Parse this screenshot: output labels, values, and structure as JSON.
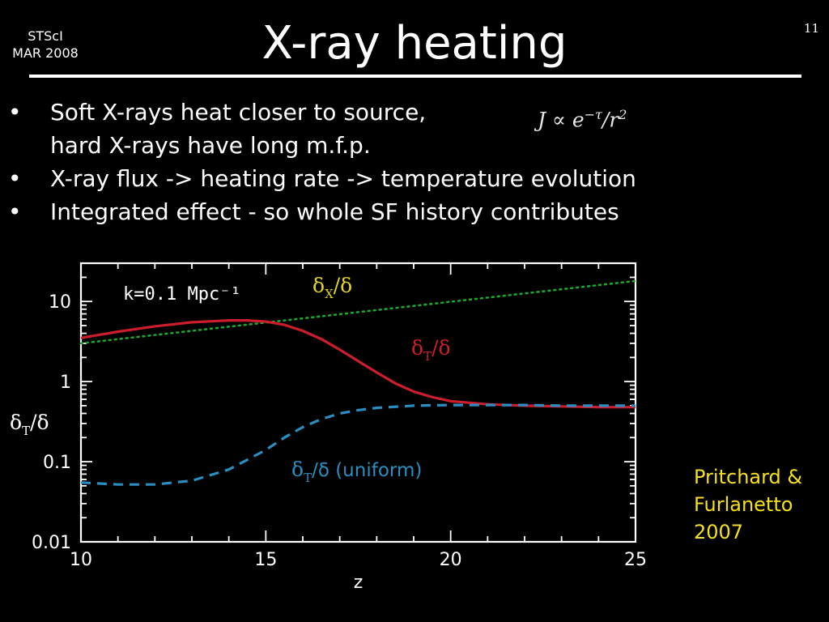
{
  "slide": {
    "venue_line1": "STScI",
    "venue_line2": "MAR 2008",
    "title": "X-ray heating",
    "page_number": "11",
    "bullets": [
      {
        "line1": "Soft X-rays heat closer to source,",
        "line2": "hard X-rays have long m.f.p."
      },
      {
        "line1": "X-ray flux -> heating rate -> temperature evolution"
      },
      {
        "line1": "Integrated effect - so whole SF history contributes"
      }
    ],
    "bullet_symbol": "•",
    "formula": {
      "lhs": "J ∝ e",
      "exponent": "−τ",
      "rest": "/r",
      "power": "2"
    },
    "citation": {
      "line1": "Pritchard &",
      "line2": "Furlanetto",
      "line3": "2007"
    }
  },
  "chart_data": {
    "type": "line",
    "xlabel": "z",
    "ylabel_main": "δ",
    "ylabel_sub": "T",
    "ylabel_tail": "/δ",
    "annotation": "k=0.1  Mpc⁻¹",
    "xlim": [
      10,
      25
    ],
    "ylim": [
      0.01,
      30
    ],
    "yscale": "log",
    "xticks": [
      10,
      15,
      20,
      25
    ],
    "xtick_labels": [
      "10",
      "15",
      "20",
      "25"
    ],
    "yticks": [
      0.01,
      0.1,
      1,
      10
    ],
    "ytick_labels": [
      "0.01",
      "0.1",
      "1",
      "10"
    ],
    "grid": false,
    "series": [
      {
        "label_main": "δ",
        "label_sub": "X",
        "label_tail": "/δ",
        "color": "#1fa32a",
        "label_color": "#e2d520",
        "style": "dotted",
        "x": [
          10,
          25
        ],
        "y": [
          3.0,
          18.0
        ]
      },
      {
        "label_main": "δ",
        "label_sub": "T",
        "label_tail": "/δ",
        "color": "#cc1d2c",
        "label_color": "#cc1d2c",
        "style": "solid",
        "x": [
          10,
          11,
          12,
          13,
          14,
          14.5,
          15,
          15.5,
          16,
          16.5,
          17,
          17.5,
          18,
          18.5,
          19,
          19.5,
          20,
          21,
          22,
          23,
          24,
          25
        ],
        "y": [
          3.5,
          4.2,
          4.9,
          5.5,
          5.8,
          5.8,
          5.6,
          5.1,
          4.3,
          3.4,
          2.5,
          1.8,
          1.3,
          0.95,
          0.75,
          0.64,
          0.57,
          0.52,
          0.5,
          0.49,
          0.48,
          0.48
        ]
      },
      {
        "label_main": "δ",
        "label_sub": "T",
        "label_tail": "/δ (uniform)",
        "color": "#2a8ec0",
        "label_color": "#2a8ec0",
        "style": "dashed",
        "x": [
          10,
          11,
          12,
          13,
          14,
          15,
          15.5,
          16,
          16.5,
          17,
          17.5,
          18,
          19,
          20,
          21,
          22,
          23,
          24,
          25
        ],
        "y": [
          0.055,
          0.052,
          0.052,
          0.058,
          0.08,
          0.14,
          0.2,
          0.27,
          0.34,
          0.4,
          0.44,
          0.47,
          0.5,
          0.51,
          0.51,
          0.51,
          0.5,
          0.5,
          0.5
        ]
      }
    ]
  }
}
